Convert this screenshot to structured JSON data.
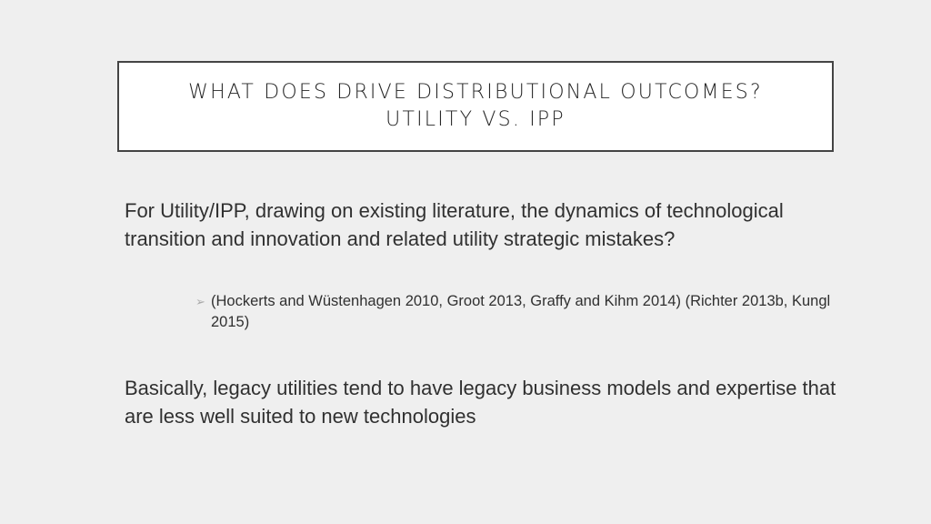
{
  "title": {
    "line1": "WHAT DOES DRIVE DISTRIBUTIONAL OUTCOMES?",
    "line2": "UTILITY VS. IPP"
  },
  "body": {
    "paragraph1": "For Utility/IPP, drawing on existing literature, the dynamics of technological transition and innovation and related utility strategic mistakes?",
    "sub_bullet": {
      "icon": "arrow-bullet-icon",
      "text": "(Hockerts and Wüstenhagen 2010, Groot 2013, Graffy and Kihm 2014) (Richter 2013b, Kungl 2015)"
    },
    "paragraph2": "Basically, legacy utilities tend to have legacy business models and expertise that are less well suited to new technologies"
  }
}
